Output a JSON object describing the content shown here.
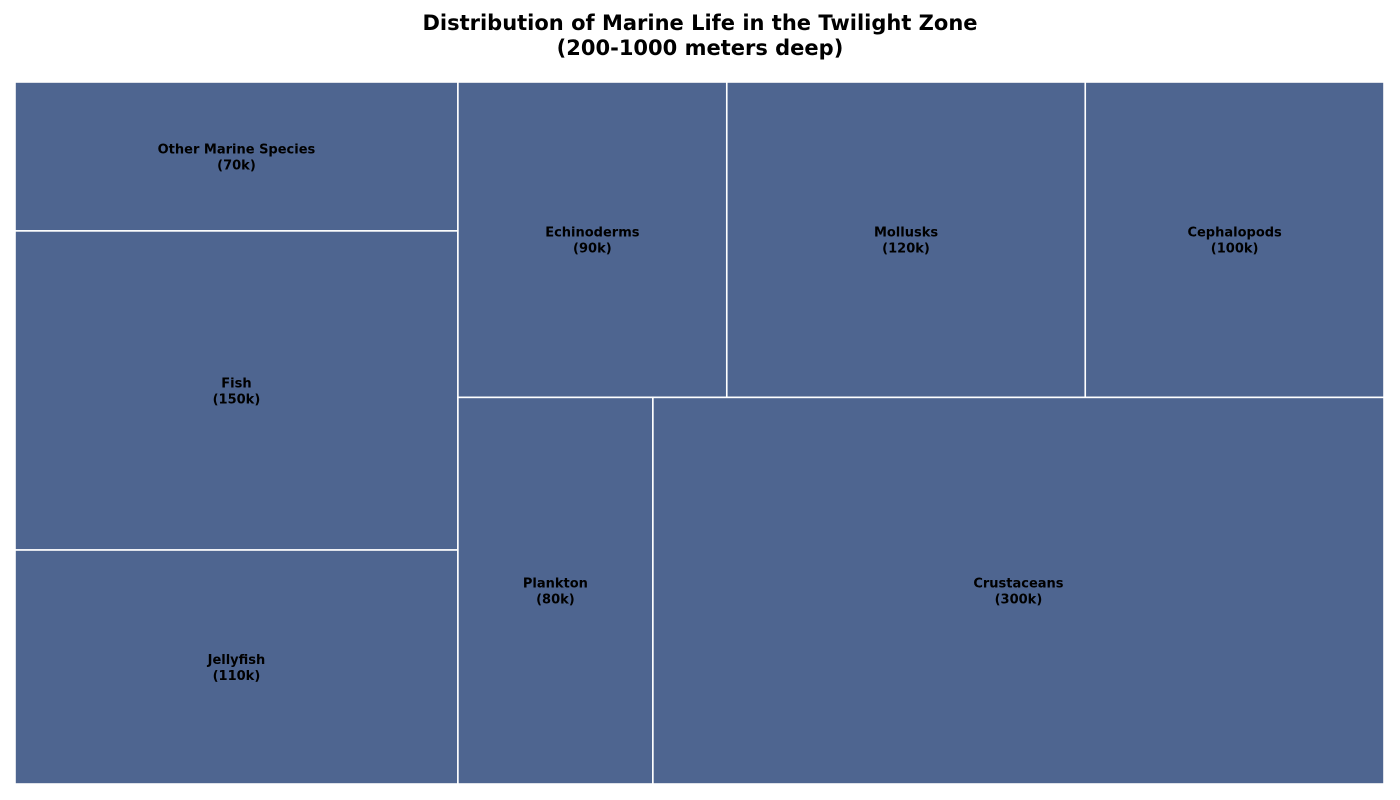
{
  "chart_data": {
    "type": "treemap",
    "title": "Distribution of Marine Life in the Twilight Zone",
    "subtitle": "(200-1000 meters deep)",
    "tile_color": "#4e6590",
    "border_color": "#ffffff",
    "items": [
      {
        "name": "Other Marine Species",
        "value": 70,
        "value_label": "(70k)"
      },
      {
        "name": "Fish",
        "value": 150,
        "value_label": "(150k)"
      },
      {
        "name": "Jellyfish",
        "value": 110,
        "value_label": "(110k)"
      },
      {
        "name": "Echinoderms",
        "value": 90,
        "value_label": "(90k)"
      },
      {
        "name": "Mollusks",
        "value": 120,
        "value_label": "(120k)"
      },
      {
        "name": "Cephalopods",
        "value": 100,
        "value_label": "(100k)"
      },
      {
        "name": "Plankton",
        "value": 80,
        "value_label": "(80k)"
      },
      {
        "name": "Crustaceans",
        "value": 300,
        "value_label": "(300k)"
      }
    ]
  }
}
